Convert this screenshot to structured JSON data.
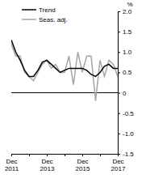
{
  "chart_data": {
    "type": "line",
    "ylabel": "%",
    "categories": [
      "Dec 2011",
      null,
      null,
      null,
      null,
      null,
      null,
      null,
      "Dec 2013",
      null,
      null,
      null,
      null,
      null,
      null,
      null,
      "Dec 2015",
      null,
      null,
      null,
      null,
      null,
      null,
      null,
      "Dec 2017"
    ],
    "series": [
      {
        "name": "Trend",
        "color": "#000000",
        "values": [
          1.3,
          1.0,
          0.8,
          0.55,
          0.4,
          0.4,
          0.55,
          0.75,
          0.8,
          0.7,
          0.6,
          0.5,
          0.55,
          0.6,
          0.6,
          0.6,
          0.6,
          0.55,
          0.45,
          0.4,
          0.5,
          0.65,
          0.7,
          0.6,
          0.6
        ]
      },
      {
        "name": "Seas. adj.",
        "color": "#a6a6a6",
        "values": [
          1.2,
          0.9,
          0.9,
          0.5,
          0.4,
          0.3,
          0.5,
          0.7,
          0.8,
          0.6,
          0.7,
          0.5,
          0.5,
          0.9,
          0.2,
          1.0,
          0.5,
          0.9,
          0.9,
          -0.2,
          0.8,
          0.4,
          0.8,
          0.7,
          0.4
        ]
      }
    ],
    "ylim": [
      -1.5,
      2
    ],
    "yticks": [
      -1.5,
      {
        "value": -1,
        "label": "-1.0"
      },
      -0.5,
      0,
      0.5,
      {
        "value": 1,
        "label": "1.0"
      },
      1.5,
      {
        "value": 2,
        "label": "2.0"
      }
    ],
    "grid": false,
    "legend": "top"
  }
}
